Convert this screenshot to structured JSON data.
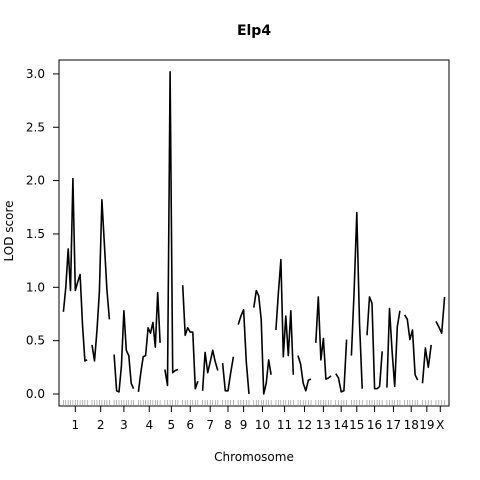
{
  "chart_data": {
    "type": "line",
    "title": "Elp4",
    "xlabel": "Chromosome",
    "ylabel": "LOD score",
    "ylim": [
      0,
      3.0
    ],
    "yticks": [
      0.0,
      0.5,
      1.0,
      1.5,
      2.0,
      2.5,
      3.0
    ],
    "ytick_labels": [
      "0.0",
      "0.5",
      "1.0",
      "1.5",
      "2.0",
      "2.5",
      "3.0"
    ],
    "chromosomes": [
      "1",
      "2",
      "3",
      "4",
      "5",
      "6",
      "7",
      "8",
      "9",
      "10",
      "11",
      "12",
      "13",
      "14",
      "15",
      "16",
      "17",
      "18",
      "19",
      "X"
    ],
    "grid": false,
    "legend": "none",
    "line_color": "#000000",
    "series": [
      {
        "chromosome": "1",
        "values": [
          0.77,
          1.0,
          1.36,
          0.97,
          2.02,
          0.97,
          1.05,
          1.12,
          0.65,
          0.31,
          0.32
        ]
      },
      {
        "chromosome": "2",
        "values": [
          0.46,
          0.31,
          0.6,
          0.96,
          1.82,
          1.4,
          0.98,
          0.7
        ]
      },
      {
        "chromosome": "3",
        "values": [
          0.37,
          0.03,
          0.02,
          0.26,
          0.78,
          0.41,
          0.36,
          0.1,
          0.05
        ]
      },
      {
        "chromosome": "4",
        "values": [
          0.02,
          0.2,
          0.35,
          0.36,
          0.62,
          0.57,
          0.67,
          0.44,
          0.95,
          0.48
        ]
      },
      {
        "chromosome": "5",
        "values": [
          0.23,
          0.08,
          3.02,
          0.2,
          0.22,
          0.23
        ]
      },
      {
        "chromosome": "6",
        "values": [
          1.02,
          0.55,
          0.62,
          0.58,
          0.58,
          0.05,
          0.12
        ]
      },
      {
        "chromosome": "7",
        "values": [
          0.03,
          0.39,
          0.2,
          0.3,
          0.41,
          0.3,
          0.22
        ]
      },
      {
        "chromosome": "8",
        "values": [
          0.29,
          0.03,
          0.03,
          0.2,
          0.35
        ]
      },
      {
        "chromosome": "9",
        "values": [
          0.65,
          0.73,
          0.79,
          0.3,
          0.0
        ]
      },
      {
        "chromosome": "10",
        "values": [
          0.81,
          0.97,
          0.92,
          0.7,
          0.0,
          0.1,
          0.32,
          0.18
        ]
      },
      {
        "chromosome": "11",
        "values": [
          0.6,
          0.95,
          1.26,
          0.35,
          0.73,
          0.36,
          0.78,
          0.18
        ]
      },
      {
        "chromosome": "12",
        "values": [
          0.36,
          0.28,
          0.1,
          0.03,
          0.13,
          0.14
        ]
      },
      {
        "chromosome": "13",
        "values": [
          0.48,
          0.91,
          0.32,
          0.52,
          0.14,
          0.15,
          0.17
        ]
      },
      {
        "chromosome": "14",
        "values": [
          0.19,
          0.15,
          0.02,
          0.03,
          0.51
        ]
      },
      {
        "chromosome": "15",
        "values": [
          0.36,
          0.96,
          1.7,
          0.67,
          0.05
        ]
      },
      {
        "chromosome": "16",
        "values": [
          0.55,
          0.91,
          0.85,
          0.05,
          0.05,
          0.07,
          0.4
        ]
      },
      {
        "chromosome": "17",
        "values": [
          0.06,
          0.8,
          0.4,
          0.07,
          0.63,
          0.78
        ]
      },
      {
        "chromosome": "18",
        "values": [
          0.74,
          0.7,
          0.51,
          0.6,
          0.18,
          0.13
        ]
      },
      {
        "chromosome": "19",
        "values": [
          0.1,
          0.43,
          0.25,
          0.46
        ]
      },
      {
        "chromosome": "X",
        "values": [
          0.68,
          0.63,
          0.57,
          0.91
        ]
      }
    ]
  }
}
